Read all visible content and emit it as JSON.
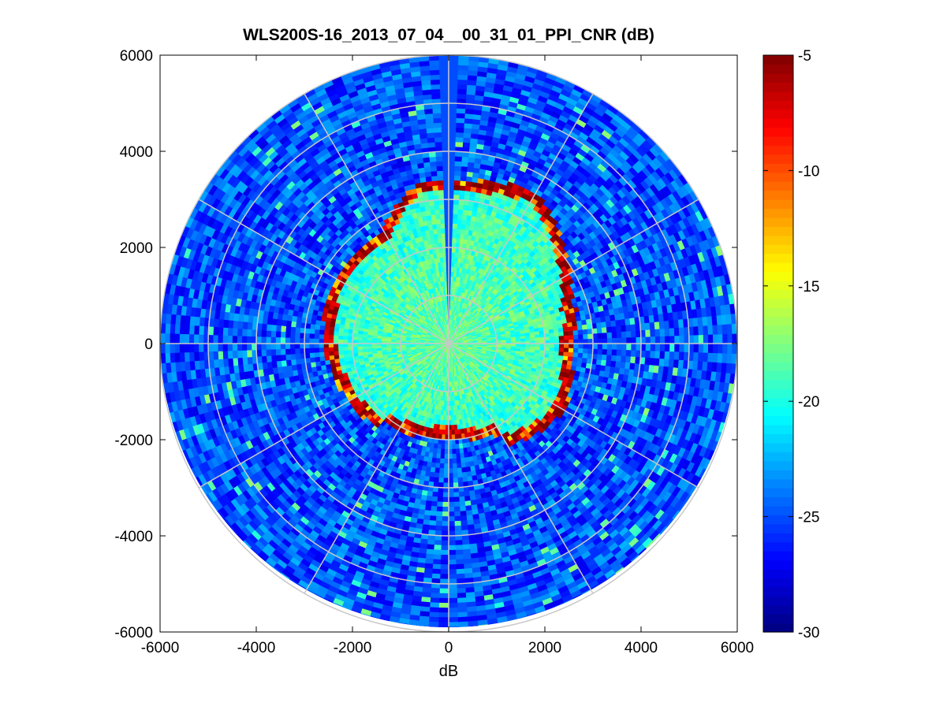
{
  "chart_data": {
    "type": "heatmap",
    "subtype": "polar-ppi",
    "title": "WLS200S-16_2013_07_04__00_31_01_PPI_CNR (dB)",
    "xlabel": "dB",
    "ylabel": "",
    "xlim": [
      -6000,
      6000
    ],
    "ylim": [
      -6000,
      6000
    ],
    "xticks": [
      -6000,
      -4000,
      -2000,
      0,
      2000,
      4000,
      6000
    ],
    "yticks": [
      -6000,
      -4000,
      -2000,
      0,
      2000,
      4000,
      6000
    ],
    "xtick_labels": [
      "-6000",
      "-4000",
      "-2000",
      "0",
      "2000",
      "4000",
      "6000"
    ],
    "ytick_labels": [
      "6000",
      "4000",
      "2000",
      "0",
      "-2000",
      "-4000",
      "-6000"
    ],
    "max_range": 6000,
    "range_rings": [
      1000,
      2000,
      3000,
      4000,
      5000,
      6000
    ],
    "spoke_angles_deg": [
      0,
      30,
      60,
      90,
      120,
      150,
      180,
      210,
      240,
      270,
      300,
      330
    ],
    "colorbar": {
      "min": -30,
      "max": -5,
      "ticks": [
        -5,
        -10,
        -15,
        -20,
        -25,
        -30
      ],
      "tick_labels": [
        "-5",
        "-10",
        "-15",
        "-20",
        "-25",
        "-30"
      ],
      "colormap": "jet"
    },
    "field_description": {
      "inner_region_cnr_db": -18,
      "outer_region_cnr_db": -25,
      "boundary_cnr_db": -6,
      "blocked_sector_deg": [
        88,
        91
      ]
    }
  }
}
